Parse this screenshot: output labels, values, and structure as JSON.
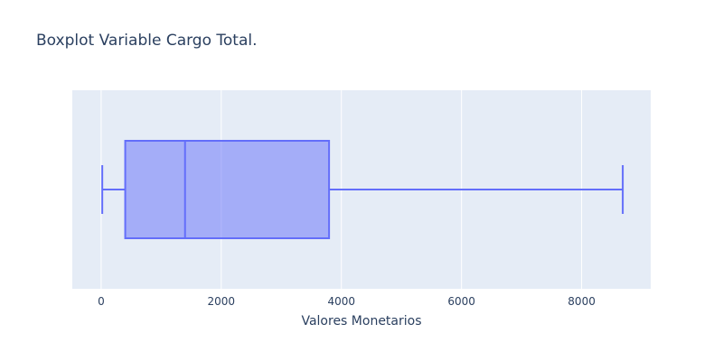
{
  "colors": {
    "plot_background": "#e5ecf6",
    "grid": "#ffffff",
    "box_fill": "#636efa",
    "box_stroke": "#636efa",
    "text": "#2a3f5f"
  },
  "chart_data": {
    "type": "box",
    "title": "Boxplot Variable Cargo Total.",
    "xlabel": "Valores Monetarios",
    "ylabel": "",
    "orientation": "horizontal",
    "xlim": [
      -480,
      9150
    ],
    "xticks": [
      0,
      2000,
      4000,
      6000,
      8000
    ],
    "x_tick_labels": [
      "0",
      "2000",
      "4000",
      "6000",
      "8000"
    ],
    "grid": true,
    "box": {
      "min": 18.8,
      "q1": 401,
      "median": 1397,
      "q3": 3795,
      "max": 8685
    }
  }
}
